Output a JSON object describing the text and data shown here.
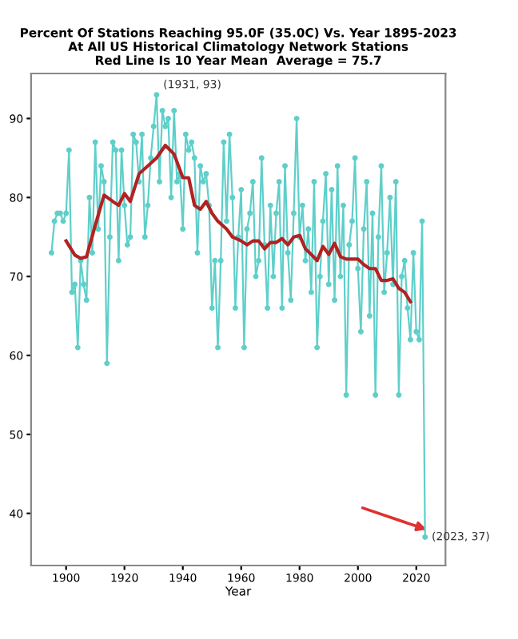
{
  "chart_data": {
    "type": "line",
    "title": "Percent Of Stations Reaching 95.0F (35.0C) Vs. Year 1895-2023\nAt All US Historical Climatology Network Stations\nRed Line Is 10 Year Mean  Average = 75.7",
    "xlabel": "Year",
    "xlim": [
      1888,
      2030
    ],
    "xticks": [
      1900,
      1920,
      1940,
      1960,
      1980,
      2000,
      2020
    ],
    "ylim": [
      33.4,
      95.7
    ],
    "yticks": [
      40,
      50,
      60,
      70,
      80,
      90
    ],
    "grid": false,
    "series": [
      {
        "color": "#5fcfca",
        "marker": "circle",
        "x": [
          1895,
          1896,
          1897,
          1898,
          1899,
          1900,
          1901,
          1902,
          1903,
          1904,
          1905,
          1906,
          1907,
          1908,
          1909,
          1910,
          1911,
          1912,
          1913,
          1914,
          1915,
          1916,
          1917,
          1918,
          1919,
          1920,
          1921,
          1922,
          1923,
          1924,
          1925,
          1926,
          1927,
          1928,
          1929,
          1930,
          1931,
          1932,
          1933,
          1934,
          1935,
          1936,
          1937,
          1938,
          1939,
          1940,
          1941,
          1942,
          1943,
          1944,
          1945,
          1946,
          1947,
          1948,
          1949,
          1950,
          1951,
          1952,
          1953,
          1954,
          1955,
          1956,
          1957,
          1958,
          1959,
          1960,
          1961,
          1962,
          1963,
          1964,
          1965,
          1966,
          1967,
          1968,
          1969,
          1970,
          1971,
          1972,
          1973,
          1974,
          1975,
          1976,
          1977,
          1978,
          1979,
          1980,
          1981,
          1982,
          1983,
          1984,
          1985,
          1986,
          1987,
          1988,
          1989,
          1990,
          1991,
          1992,
          1993,
          1994,
          1995,
          1996,
          1997,
          1998,
          1999,
          2000,
          2001,
          2002,
          2003,
          2004,
          2005,
          2006,
          2007,
          2008,
          2009,
          2010,
          2011,
          2012,
          2013,
          2014,
          2015,
          2016,
          2017,
          2018,
          2019,
          2020,
          2021,
          2022,
          2023
        ],
        "values": [
          73,
          77,
          78,
          78,
          77,
          78,
          86,
          68,
          69,
          61,
          72,
          69,
          67,
          80,
          73,
          87,
          76,
          84,
          82,
          59,
          75,
          87,
          86,
          72,
          86,
          79,
          74,
          75,
          88,
          87,
          82,
          88,
          75,
          79,
          85,
          89,
          93,
          82,
          91,
          89,
          90,
          80,
          91,
          82,
          83,
          76,
          88,
          86,
          87,
          85,
          73,
          84,
          82,
          83,
          79,
          66,
          72,
          61,
          72,
          87,
          77,
          88,
          80,
          66,
          75,
          81,
          61,
          76,
          78,
          82,
          70,
          72,
          85,
          74,
          66,
          79,
          70,
          78,
          82,
          66,
          84,
          73,
          67,
          78,
          90,
          75,
          79,
          72,
          76,
          68,
          82,
          61,
          70,
          77,
          83,
          69,
          81,
          67,
          84,
          70,
          79,
          55,
          74,
          77,
          85,
          71,
          63,
          76,
          82,
          65,
          78,
          55,
          75,
          84,
          68,
          73,
          80,
          69,
          82,
          55,
          70,
          72,
          66,
          62,
          73,
          63,
          62,
          77,
          37
        ]
      },
      {
        "color": "#b22222",
        "marker": "none",
        "x": [
          1900,
          1903,
          1905,
          1907,
          1910,
          1913,
          1916,
          1918,
          1920,
          1922,
          1925,
          1928,
          1931,
          1934,
          1937,
          1940,
          1942,
          1944,
          1946,
          1948,
          1950,
          1952,
          1955,
          1957,
          1960,
          1962,
          1964,
          1966,
          1968,
          1970,
          1972,
          1974,
          1976,
          1978,
          1980,
          1982,
          1984,
          1986,
          1988,
          1990,
          1992,
          1994,
          1996,
          1998,
          2000,
          2002,
          2004,
          2006,
          2008,
          2010,
          2012,
          2014,
          2016,
          2018
        ],
        "values": [
          74.5,
          72.7,
          72.3,
          72.5,
          76.5,
          80.3,
          79.5,
          79,
          80.5,
          79.5,
          83,
          84,
          85,
          86.6,
          85.5,
          82.5,
          82.5,
          79,
          78.5,
          79.5,
          78,
          77,
          76,
          75,
          74.5,
          74,
          74.5,
          74.5,
          73.5,
          74.3,
          74.3,
          74.8,
          74,
          75,
          75.2,
          73.5,
          72.8,
          72,
          73.8,
          72.8,
          74.2,
          72.5,
          72.2,
          72.2,
          72.2,
          71.5,
          71,
          71,
          69.5,
          69.5,
          69.7,
          68.5,
          68,
          66.8
        ]
      }
    ],
    "annotations": [
      {
        "text": "(1931, 93)",
        "x": 1931,
        "y": 93
      },
      {
        "text": "(2023, 37)",
        "x": 2023,
        "y": 37
      }
    ]
  }
}
